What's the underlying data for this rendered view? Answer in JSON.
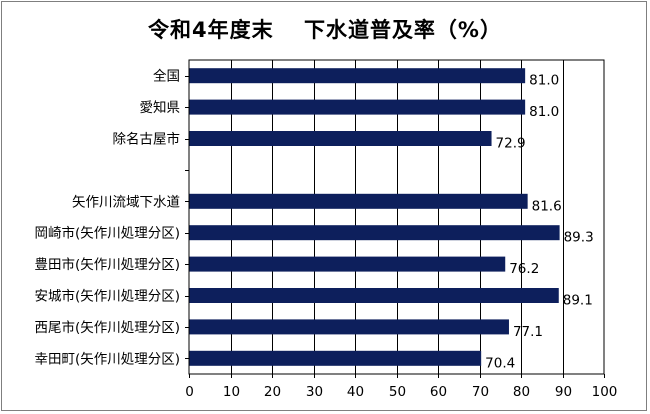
{
  "chart_data": {
    "type": "bar",
    "orientation": "horizontal",
    "title": "令和4年度末　 下水道普及率（%）",
    "xlabel": "",
    "ylabel": "",
    "categories": [
      "全国",
      "愛知県",
      "除名古屋市",
      "",
      "矢作川流域下水道",
      "岡崎市(矢作川処理分区)",
      "豊田市(矢作川処理分区)",
      "安城市(矢作川処理分区)",
      "西尾市(矢作川処理分区)",
      "幸田町(矢作川処理分区)"
    ],
    "values": [
      81.0,
      81.0,
      72.9,
      null,
      81.6,
      89.3,
      76.2,
      89.1,
      77.1,
      70.4
    ],
    "value_labels": [
      "81.0",
      "81.0",
      "72.9",
      "",
      "81.6",
      "89.3",
      "76.2",
      "89.1",
      "77.1",
      "70.4"
    ],
    "xlim": [
      0,
      100
    ],
    "xticks": [
      "0",
      "10",
      "20",
      "30",
      "40",
      "50",
      "60",
      "70",
      "80",
      "90",
      "100"
    ],
    "grid": "vertical",
    "legend": "none",
    "bar_color": "#0d1f5c"
  }
}
